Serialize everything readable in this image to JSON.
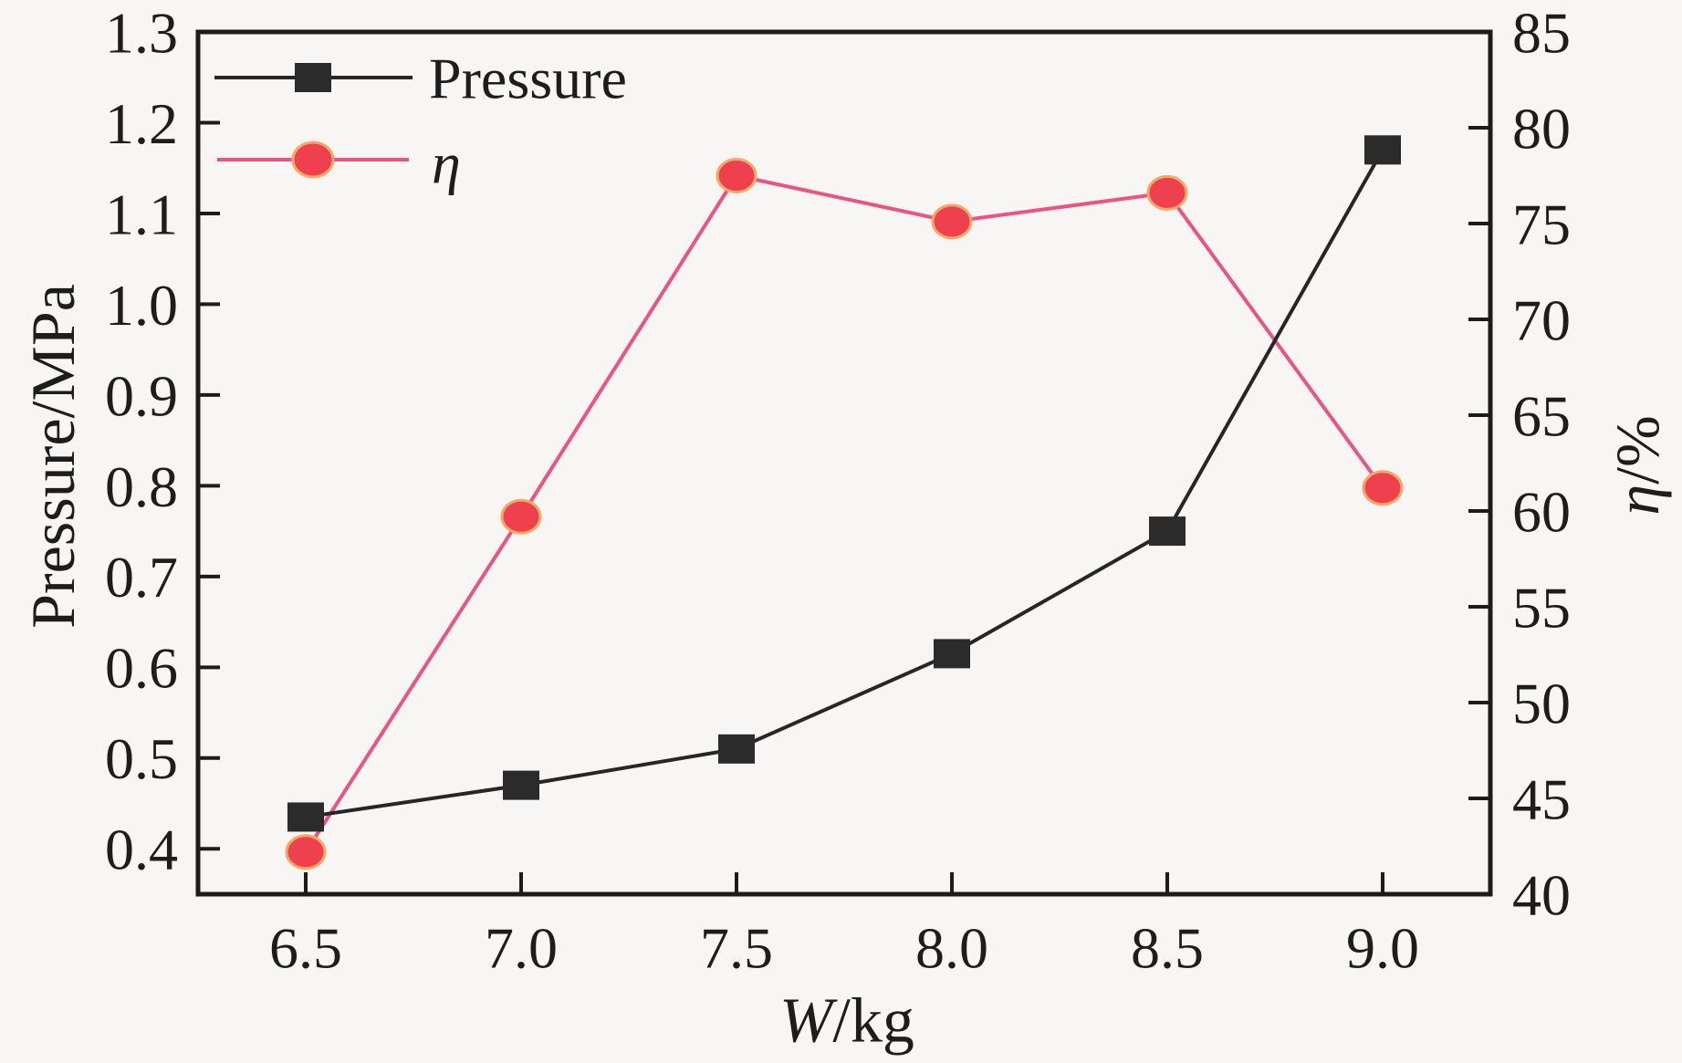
{
  "figure": {
    "background": "#f7f6f4"
  },
  "chart_data": {
    "type": "line",
    "x": [
      6.5,
      7.0,
      7.5,
      8.0,
      8.5,
      9.0
    ],
    "x_tick_labels": [
      "6.5",
      "7.0",
      "7.5",
      "8.0",
      "8.5",
      "9.0"
    ],
    "series": [
      {
        "name": "Pressure",
        "axis": "left",
        "values": [
          0.435,
          0.47,
          0.51,
          0.615,
          0.75,
          1.17
        ],
        "line_color": "#262626",
        "marker": "square",
        "marker_fill": "#2b2b2b"
      },
      {
        "name": "η",
        "axis": "right",
        "values": [
          42.2,
          59.7,
          77.5,
          75.1,
          76.6,
          61.2
        ],
        "line_color": "#ec5384",
        "marker": "circle",
        "marker_fill": "#ef4050",
        "marker_edge": "#f2a963"
      }
    ],
    "xlabel": [
      {
        "text": "W",
        "italic": true
      },
      {
        "text": "/kg",
        "italic": false
      }
    ],
    "ylabel_left": [
      {
        "text": "Pressure/MPa",
        "italic": false
      }
    ],
    "ylabel_right": [
      {
        "text": "η",
        "italic": true
      },
      {
        "text": "/%",
        "italic": false
      }
    ],
    "legend": [
      {
        "label": "Pressure",
        "italic": false
      },
      {
        "label": "η",
        "italic": true
      }
    ],
    "axes": {
      "x_range": [
        6.25,
        9.25
      ],
      "y_left_range": [
        0.35,
        1.3
      ],
      "y_right_range": [
        40,
        85
      ],
      "x_ticks": [
        6.5,
        7.0,
        7.5,
        8.0,
        8.5,
        9.0
      ],
      "y_left_ticks": [
        0.4,
        0.5,
        0.6,
        0.7,
        0.8,
        0.9,
        1.0,
        1.1,
        1.2,
        1.3
      ],
      "y_right_ticks": [
        40,
        45,
        50,
        55,
        60,
        65,
        70,
        75,
        80,
        85
      ],
      "grid": false,
      "legend_position": "top-left",
      "frame_color": "#1c1c1c",
      "text_color": "#1d1d1d"
    }
  }
}
